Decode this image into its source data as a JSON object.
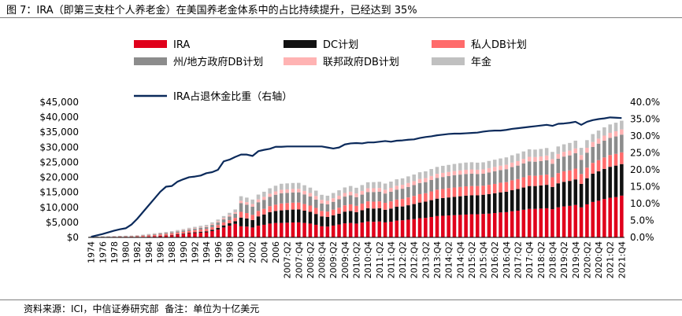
{
  "header": {
    "title": "图 7：IRA（即第三支柱个人养老金）在美国养老金体系中的占比持续提升，已经达到 35%"
  },
  "footer": {
    "source": "资料来源：ICI，中信证券研究部",
    "note": "备注：单位为十亿美元"
  },
  "chart_data": {
    "type": "bar",
    "subtype": "stacked-bar-with-line",
    "title": "图 7：IRA（即第三支柱个人养老金）在美国养老金体系中的占比持续提升，已经达到 35%",
    "ylabel": "十亿美元",
    "y2label": "IRA占退休金比重（右轴）",
    "ylim": [
      0,
      45000
    ],
    "y2lim": [
      0,
      0.4
    ],
    "yticks": [
      "$0",
      "$5,000",
      "$10,000",
      "$15,000",
      "$20,000",
      "$25,000",
      "$30,000",
      "$35,000",
      "$40,000",
      "$45,000"
    ],
    "y2ticks": [
      "0.0%",
      "5.0%",
      "10.0%",
      "15.0%",
      "20.0%",
      "25.0%",
      "30.0%",
      "35.0%",
      "40.0%"
    ],
    "grid": false,
    "legend_position": "top",
    "categories": [
      "1974",
      "1975",
      "1976",
      "1977",
      "1978",
      "1979",
      "1980",
      "1981",
      "1982",
      "1983",
      "1984",
      "1985",
      "1986",
      "1987",
      "1988",
      "1989",
      "1990",
      "1991",
      "1992",
      "1993",
      "1994",
      "1995",
      "1996",
      "1997",
      "1998",
      "1999",
      "2000",
      "2001",
      "2002",
      "2003",
      "2004",
      "2005",
      "2006",
      "2007:Q1",
      "2007:Q2",
      "2007:Q3",
      "2007:Q4",
      "2008:Q1",
      "2008:Q2",
      "2008:Q3",
      "2008:Q4",
      "2009:Q1",
      "2009:Q2",
      "2009:Q3",
      "2009:Q4",
      "2010:Q1",
      "2010:Q2",
      "2010:Q3",
      "2010:Q4",
      "2011:Q1",
      "2011:Q2",
      "2011:Q3",
      "2011:Q4",
      "2012:Q1",
      "2012:Q2",
      "2012:Q3",
      "2012:Q4",
      "2013:Q1",
      "2013:Q2",
      "2013:Q3",
      "2013:Q4",
      "2014:Q1",
      "2014:Q2",
      "2014:Q3",
      "2014:Q4",
      "2015:Q1",
      "2015:Q2",
      "2015:Q3",
      "2015:Q4",
      "2016:Q1",
      "2016:Q2",
      "2016:Q3",
      "2016:Q4",
      "2017:Q1",
      "2017:Q2",
      "2017:Q3",
      "2017:Q4",
      "2018:Q1",
      "2018:Q2",
      "2018:Q3",
      "2018:Q4",
      "2019:Q1",
      "2019:Q2",
      "2019:Q3",
      "2019:Q4",
      "2020:Q1",
      "2020:Q2",
      "2020:Q3",
      "2020:Q4",
      "2021:Q1",
      "2021:Q2",
      "2021:Q3",
      "2021:Q4"
    ],
    "tick_labels": [
      "1974",
      "1976",
      "1978",
      "1980",
      "1982",
      "1984",
      "1986",
      "1988",
      "1990",
      "1992",
      "1994",
      "1996",
      "1998",
      "2000",
      "2002",
      "2004",
      "2006",
      "2007:Q2",
      "2007:Q4",
      "2008:Q2",
      "2008:Q4",
      "2009:Q2",
      "2009:Q4",
      "2010:Q2",
      "2010:Q4",
      "2011:Q2",
      "2011:Q4",
      "2012:Q2",
      "2012:Q4",
      "2013:Q2",
      "2013:Q4",
      "2014:Q2",
      "2014:Q4",
      "2015:Q2",
      "2015:Q4",
      "2016:Q2",
      "2016:Q4",
      "2017:Q2",
      "2017:Q4",
      "2018:Q2",
      "2018:Q4",
      "2019:Q2",
      "2019:Q4",
      "2020:Q2",
      "2020:Q4",
      "2021:Q2",
      "2021:Q4"
    ],
    "series": [
      {
        "name": "IRA",
        "kind": "bar",
        "color": "#e0001b",
        "values": [
          1,
          3,
          5,
          9,
          14,
          20,
          25,
          40,
          75,
          150,
          240,
          360,
          460,
          570,
          700,
          900,
          1050,
          1300,
          1450,
          1600,
          1700,
          2100,
          2600,
          3300,
          3900,
          4500,
          3700,
          3600,
          3300,
          3900,
          4200,
          4600,
          4800,
          4800,
          4880,
          4960,
          5000,
          4800,
          4600,
          4200,
          3700,
          3600,
          3940,
          4280,
          4680,
          4800,
          4600,
          4940,
          5300,
          5200,
          5300,
          5000,
          5200,
          5600,
          5700,
          5900,
          6100,
          6400,
          6500,
          6800,
          7100,
          7200,
          7300,
          7400,
          7500,
          7600,
          7700,
          7700,
          7800,
          7900,
          8100,
          8300,
          8400,
          8700,
          8900,
          9200,
          9500,
          9500,
          9600,
          9700,
          9400,
          10000,
          10300,
          10500,
          10800,
          10000,
          11000,
          11800,
          12200,
          12800,
          13200,
          13400,
          13900
        ]
      },
      {
        "name": "DC计划",
        "kind": "bar",
        "color": "#111111",
        "values": [
          0,
          0,
          0,
          0,
          0,
          0,
          0,
          0,
          0,
          10,
          30,
          60,
          80,
          100,
          130,
          150,
          200,
          230,
          260,
          300,
          330,
          450,
          600,
          700,
          800,
          900,
          2900,
          2700,
          2500,
          3100,
          3400,
          3800,
          4000,
          4200,
          4250,
          4300,
          4300,
          4100,
          3900,
          3600,
          3300,
          3200,
          3400,
          3600,
          3900,
          4000,
          3800,
          4100,
          4400,
          4400,
          4400,
          4200,
          4400,
          4600,
          4600,
          4800,
          5000,
          5200,
          5400,
          5600,
          5800,
          5900,
          6000,
          6100,
          6200,
          6300,
          6300,
          6300,
          6400,
          6500,
          6600,
          6700,
          6800,
          7000,
          7200,
          7400,
          7600,
          7600,
          7700,
          7800,
          7400,
          8000,
          8200,
          8300,
          8500,
          7800,
          8700,
          9400,
          9800,
          10000,
          10300,
          10500,
          10500
        ]
      },
      {
        "name": "私人DB计划",
        "kind": "bar",
        "color": "#ff6b6b",
        "values": [
          140,
          160,
          180,
          190,
          210,
          230,
          250,
          280,
          300,
          350,
          380,
          420,
          460,
          490,
          520,
          560,
          600,
          640,
          680,
          720,
          780,
          830,
          900,
          960,
          1030,
          1100,
          1900,
          1800,
          1700,
          1800,
          1900,
          2000,
          2100,
          2300,
          2300,
          2300,
          2300,
          2200,
          2100,
          2000,
          1800,
          1800,
          1900,
          2000,
          2100,
          2200,
          2100,
          2200,
          2300,
          2300,
          2300,
          2300,
          2400,
          2400,
          2500,
          2600,
          2700,
          2800,
          2800,
          2900,
          3000,
          3000,
          3100,
          3100,
          3100,
          3100,
          3100,
          3100,
          3000,
          3100,
          3100,
          3200,
          3200,
          3300,
          3300,
          3400,
          3500,
          3400,
          3400,
          3400,
          3200,
          3400,
          3500,
          3500,
          3600,
          3300,
          3500,
          3600,
          3700,
          3800,
          3900,
          3900,
          3900
        ]
      },
      {
        "name": "州/地方政府DB计划",
        "kind": "bar",
        "color": "#8c8c8c",
        "values": [
          80,
          90,
          100,
          110,
          120,
          140,
          160,
          170,
          190,
          210,
          240,
          270,
          300,
          340,
          380,
          420,
          460,
          500,
          550,
          600,
          650,
          800,
          900,
          1050,
          1200,
          1350,
          2900,
          2800,
          2700,
          2900,
          3000,
          3100,
          3300,
          3400,
          3400,
          3400,
          3400,
          3200,
          3000,
          2800,
          2500,
          2400,
          2600,
          2800,
          2900,
          3000,
          2900,
          3000,
          3100,
          3200,
          3200,
          3100,
          3200,
          3300,
          3400,
          3500,
          3600,
          3700,
          3700,
          3800,
          3900,
          4000,
          4000,
          4100,
          4100,
          4100,
          4100,
          4000,
          4000,
          4100,
          4200,
          4200,
          4300,
          4400,
          4500,
          4600,
          4700,
          4700,
          4700,
          4800,
          4500,
          4800,
          4900,
          5000,
          5100,
          4700,
          5000,
          5300,
          5500,
          5600,
          5700,
          5800,
          5900
        ]
      },
      {
        "name": "联邦政府DB计划",
        "kind": "bar",
        "color": "#ffb3b3",
        "values": [
          30,
          35,
          40,
          45,
          50,
          55,
          60,
          70,
          80,
          90,
          100,
          110,
          120,
          130,
          140,
          150,
          160,
          180,
          200,
          220,
          250,
          300,
          350,
          400,
          450,
          500,
          800,
          850,
          900,
          950,
          1000,
          1050,
          1100,
          1150,
          1150,
          1150,
          1160,
          1160,
          1170,
          1170,
          1180,
          1180,
          1190,
          1200,
          1200,
          1210,
          1220,
          1230,
          1240,
          1250,
          1260,
          1270,
          1280,
          1290,
          1300,
          1310,
          1320,
          1330,
          1340,
          1350,
          1360,
          1370,
          1380,
          1390,
          1400,
          1410,
          1420,
          1430,
          1440,
          1450,
          1460,
          1470,
          1480,
          1490,
          1500,
          1510,
          1520,
          1530,
          1540,
          1550,
          1560,
          1570,
          1580,
          1590,
          1600,
          1600,
          1620,
          1640,
          1660,
          1680,
          1700,
          1720,
          1740
        ]
      },
      {
        "name": "年金",
        "kind": "bar",
        "color": "#c0c0c0",
        "values": [
          20,
          30,
          40,
          50,
          60,
          70,
          80,
          90,
          100,
          120,
          140,
          160,
          180,
          200,
          230,
          260,
          300,
          340,
          380,
          420,
          460,
          520,
          600,
          700,
          800,
          950,
          1500,
          1500,
          1500,
          1600,
          1700,
          1800,
          1900,
          2000,
          2000,
          2000,
          2000,
          1900,
          1800,
          1800,
          1700,
          1700,
          1750,
          1800,
          1850,
          1900,
          1900,
          1950,
          2000,
          2050,
          2050,
          2050,
          2100,
          2150,
          2150,
          2200,
          2200,
          2250,
          2250,
          2300,
          2300,
          2350,
          2350,
          2350,
          2400,
          2400,
          2400,
          2350,
          2350,
          2400,
          2400,
          2400,
          2450,
          2450,
          2500,
          2500,
          2500,
          2500,
          2500,
          2500,
          2400,
          2500,
          2500,
          2550,
          2600,
          2400,
          2550,
          2650,
          2700,
          2750,
          2800,
          2850,
          2900
        ]
      },
      {
        "name": "IRA占退休金比重（右轴）",
        "kind": "line",
        "axis": "right",
        "color": "#0b2a5b",
        "values": [
          0.002,
          0.006,
          0.01,
          0.015,
          0.02,
          0.024,
          0.027,
          0.038,
          0.055,
          0.075,
          0.095,
          0.115,
          0.135,
          0.15,
          0.152,
          0.165,
          0.172,
          0.178,
          0.18,
          0.183,
          0.19,
          0.193,
          0.2,
          0.225,
          0.23,
          0.238,
          0.245,
          0.245,
          0.241,
          0.255,
          0.259,
          0.262,
          0.268,
          0.268,
          0.269,
          0.269,
          0.269,
          0.269,
          0.269,
          0.269,
          0.269,
          0.266,
          0.263,
          0.266,
          0.275,
          0.278,
          0.279,
          0.278,
          0.281,
          0.281,
          0.283,
          0.285,
          0.283,
          0.286,
          0.287,
          0.289,
          0.29,
          0.294,
          0.297,
          0.299,
          0.302,
          0.304,
          0.306,
          0.307,
          0.307,
          0.308,
          0.309,
          0.31,
          0.313,
          0.315,
          0.316,
          0.316,
          0.318,
          0.321,
          0.323,
          0.325,
          0.327,
          0.329,
          0.331,
          0.333,
          0.33,
          0.336,
          0.337,
          0.339,
          0.342,
          0.333,
          0.342,
          0.347,
          0.35,
          0.352,
          0.355,
          0.354,
          0.353
        ]
      }
    ]
  }
}
